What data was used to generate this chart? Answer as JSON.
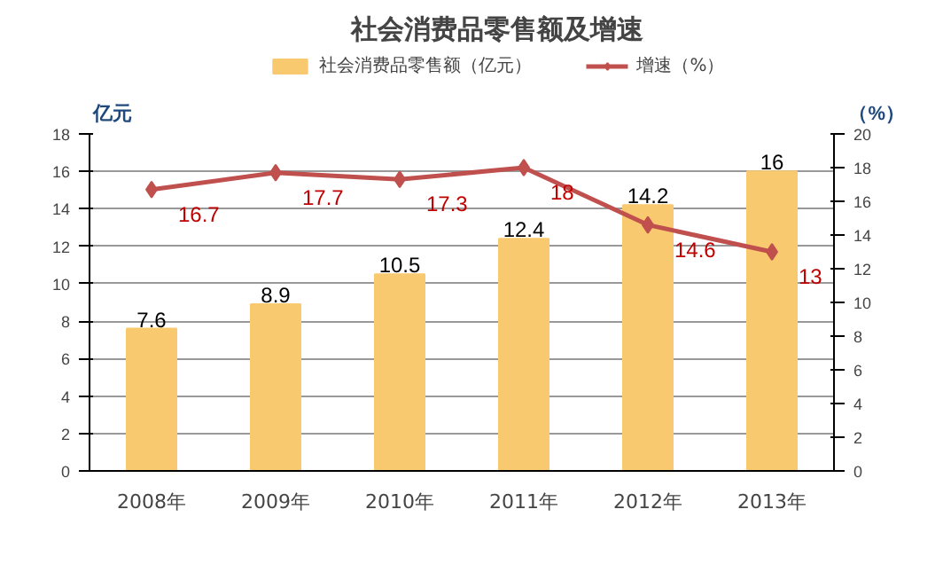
{
  "chart_data": {
    "type": "bar",
    "title": "社会消费品零售额及增速",
    "ylabel": "亿元",
    "y2label": "（%）",
    "categories": [
      "2008年",
      "2009年",
      "2010年",
      "2011年",
      "2012年",
      "2013年"
    ],
    "series": [
      {
        "name": "社会消费品零售额（亿元）",
        "color": "#f9c96f",
        "values": [
          7.6,
          8.9,
          10.5,
          12.4,
          14.2,
          16
        ]
      },
      {
        "name": "增速（%）",
        "type": "line",
        "axis": "y2",
        "color": "#c0504d",
        "marker": "diamond",
        "values": [
          16.7,
          17.7,
          17.3,
          18,
          14.6,
          13
        ]
      }
    ],
    "ylim": [
      0,
      18
    ],
    "yticks": [
      0,
      2,
      4,
      6,
      8,
      10,
      12,
      14,
      16,
      18
    ],
    "y2lim": [
      0,
      20
    ],
    "y2ticks": [
      0,
      2,
      4,
      6,
      8,
      10,
      12,
      14,
      16,
      18,
      20
    ],
    "data_labels": true,
    "grid": "y",
    "legend": "top"
  }
}
